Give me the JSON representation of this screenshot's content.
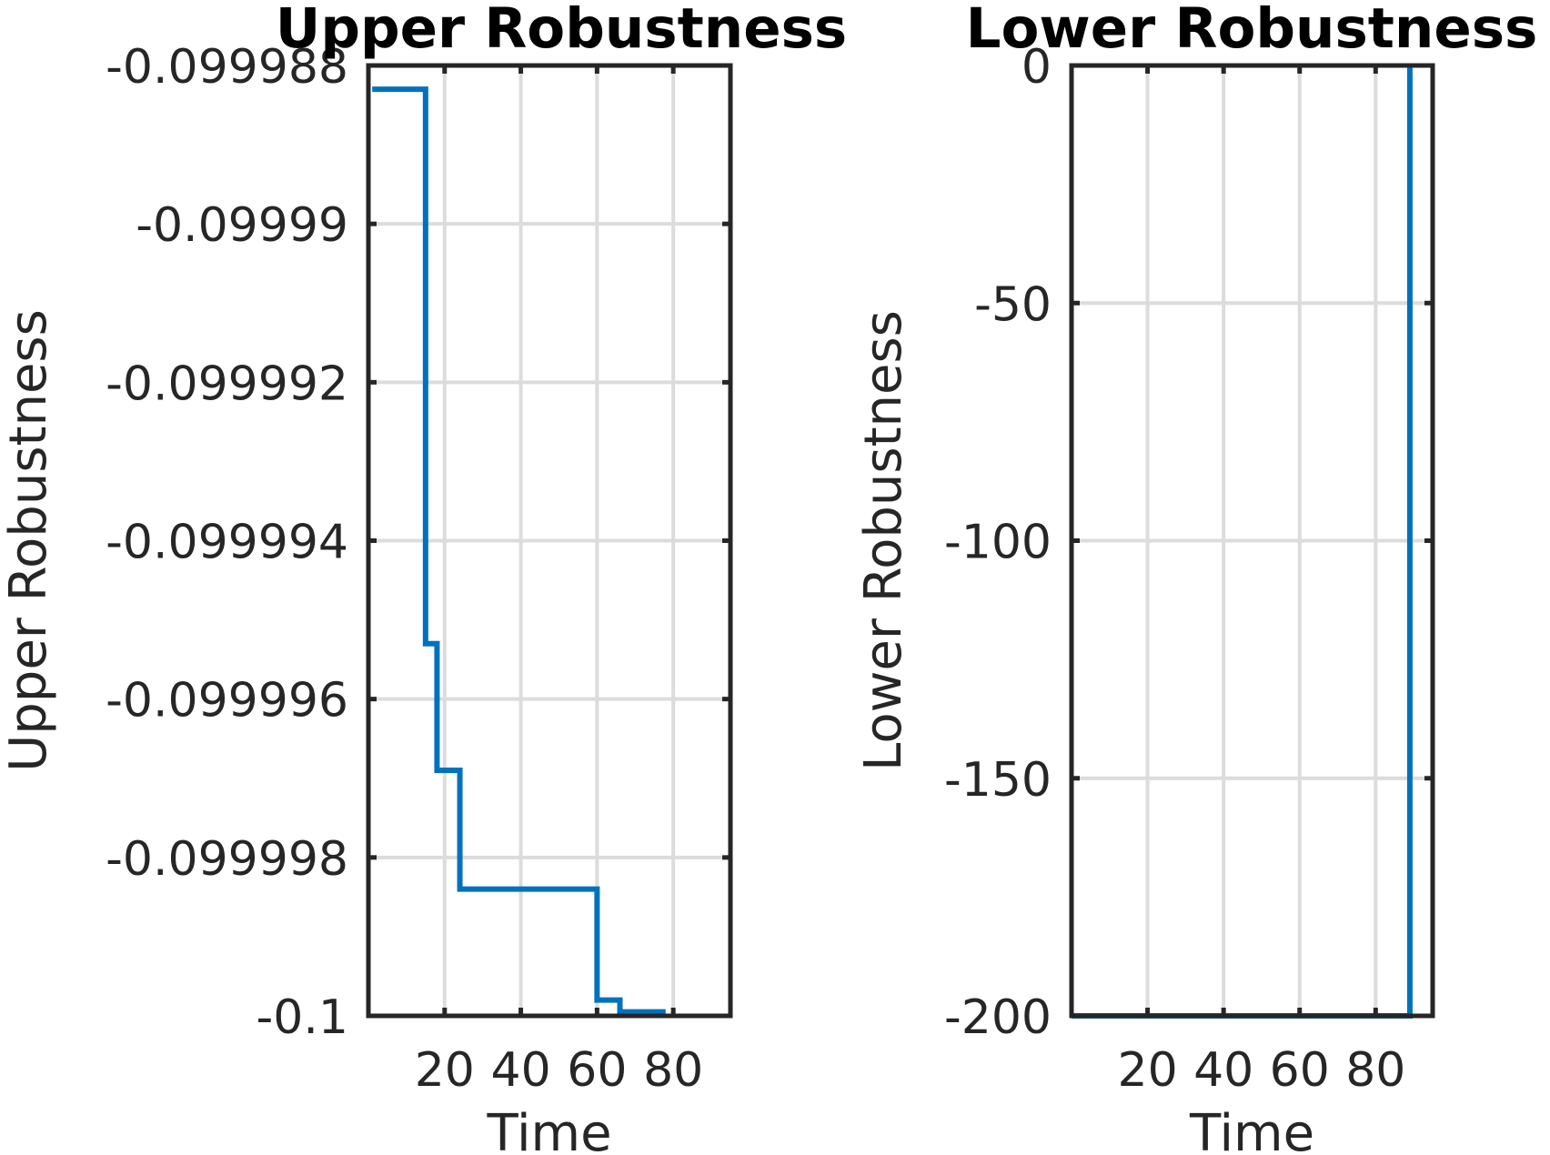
{
  "chart_data": [
    {
      "type": "line",
      "title": "Upper Robustness",
      "xlabel": "Time",
      "ylabel": "Upper Robustness",
      "xlim": [
        0,
        95
      ],
      "ylim": [
        -0.1,
        -0.099988
      ],
      "xticks": [
        20,
        40,
        60,
        80
      ],
      "xtick_labels": [
        "20",
        "40",
        "60",
        "80"
      ],
      "yticks": [
        -0.1,
        -0.099998,
        -0.099996,
        -0.099994,
        -0.099992,
        -0.09999,
        -0.099988
      ],
      "ytick_labels": [
        "-0.1",
        "-0.099998",
        "-0.099996",
        "-0.099994",
        "-0.099992",
        "-0.09999",
        "-0.099988"
      ],
      "grid": true,
      "step": true,
      "color": "#0072BD",
      "series": [
        {
          "x": [
            1,
            3,
            15,
            17,
            18,
            19,
            24,
            25,
            60,
            61,
            66,
            67,
            78
          ],
          "y": [
            -0.0999883,
            -0.0999883,
            -0.0999953,
            -0.0999953,
            -0.0999969,
            -0.0999969,
            -0.0999984,
            -0.0999984,
            -0.0999998,
            -0.0999998,
            -0.09999995,
            -0.09999995,
            -0.09999995
          ]
        }
      ]
    },
    {
      "type": "line",
      "title": "Lower Robustness",
      "xlabel": "Time",
      "ylabel": "Lower Robustness",
      "xlim": [
        0,
        95
      ],
      "ylim": [
        -200,
        0
      ],
      "xticks": [
        20,
        40,
        60,
        80
      ],
      "xtick_labels": [
        "20",
        "40",
        "60",
        "80"
      ],
      "yticks": [
        -200,
        -150,
        -100,
        -50,
        0
      ],
      "ytick_labels": [
        "-200",
        "-150",
        "-100",
        "-50",
        "0"
      ],
      "grid": true,
      "step": true,
      "color": "#0072BD",
      "series": [
        {
          "x": [
            0,
            89,
            89
          ],
          "y": [
            -200,
            -200,
            0
          ]
        }
      ]
    }
  ]
}
